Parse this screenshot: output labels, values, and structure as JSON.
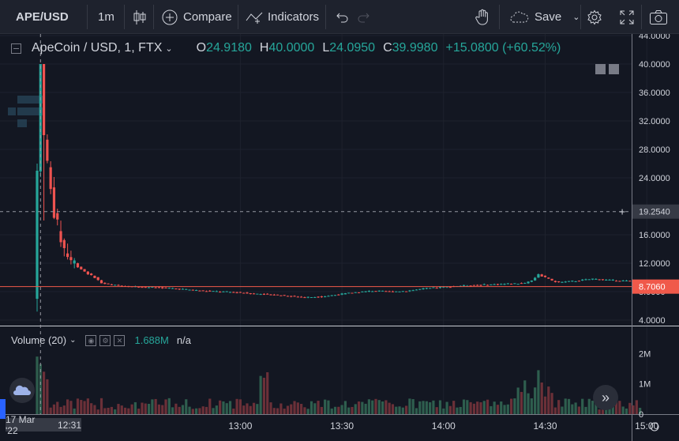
{
  "toolbar": {
    "symbol": "APE/USD",
    "interval": "1m",
    "compare_label": "Compare",
    "indicators_label": "Indicators",
    "save_label": "Save"
  },
  "legend": {
    "name": "ApeCoin / USD, 1, FTX",
    "o_label": "O",
    "o_value": "24.9180",
    "h_label": "H",
    "h_value": "40.0000",
    "l_label": "L",
    "l_value": "24.0950",
    "c_label": "C",
    "c_value": "39.9980",
    "change": "+15.0800 (+60.52%)"
  },
  "volume_legend": {
    "label": "Volume (20)",
    "value": "1.688M",
    "ma": "n/a"
  },
  "crosshair": {
    "date_label": "17 Mar '22",
    "time_label": "12:31",
    "price_label": "19.2540"
  },
  "colors": {
    "up": "#26a69a",
    "down": "#ef5350",
    "up_vol": "#2e5e4e",
    "down_vol": "#6b3038",
    "last": "#f0594a"
  },
  "chart_data": {
    "type": "candlestick",
    "y_ticks": [
      "44.0000",
      "40.0000",
      "36.0000",
      "32.0000",
      "28.0000",
      "24.0000",
      "16.0000",
      "12.0000",
      "8.0000",
      "4.0000"
    ],
    "y_tick_values": [
      44,
      40,
      36,
      32,
      28,
      24,
      16,
      12,
      8,
      4
    ],
    "ylim": [
      0,
      44
    ],
    "last_price": "8.7060",
    "last_price_value": 8.706,
    "x_ticks": [
      "13:00",
      "13:30",
      "14:00",
      "14:30",
      "15:00"
    ],
    "x_tick_minutes": [
      60,
      90,
      120,
      150,
      180
    ],
    "volume_ticks": [
      "2M",
      "1M",
      "0"
    ],
    "volume_tick_values": [
      2000000,
      1000000,
      0
    ],
    "volume_max": 2400000,
    "candles_anchor_price": [
      [
        0,
        7
      ],
      [
        1,
        25
      ],
      [
        2,
        40
      ],
      [
        3,
        30
      ],
      [
        4,
        26
      ],
      [
        5,
        22
      ],
      [
        7,
        17
      ],
      [
        9,
        14
      ],
      [
        11,
        12.5
      ],
      [
        13,
        11.5
      ],
      [
        16,
        10.5
      ],
      [
        18,
        10
      ],
      [
        20,
        9.2
      ],
      [
        22,
        9
      ],
      [
        26,
        8.8
      ],
      [
        30,
        8.7
      ],
      [
        35,
        8.6
      ],
      [
        40,
        8.5
      ],
      [
        45,
        8.3
      ],
      [
        50,
        8.1
      ],
      [
        55,
        8.0
      ],
      [
        60,
        7.9
      ],
      [
        65,
        7.7
      ],
      [
        70,
        7.6
      ],
      [
        75,
        7.4
      ],
      [
        80,
        7.2
      ],
      [
        85,
        7.3
      ],
      [
        90,
        7.6
      ],
      [
        95,
        7.9
      ],
      [
        100,
        8.1
      ],
      [
        105,
        8.0
      ],
      [
        110,
        8.1
      ],
      [
        115,
        8.4
      ],
      [
        120,
        8.6
      ],
      [
        125,
        8.8
      ],
      [
        130,
        8.9
      ],
      [
        135,
        9.0
      ],
      [
        140,
        9.1
      ],
      [
        145,
        9.2
      ],
      [
        147,
        9.6
      ],
      [
        149,
        10.4
      ],
      [
        151,
        10.0
      ],
      [
        153,
        9.5
      ],
      [
        155,
        9.3
      ],
      [
        160,
        9.5
      ],
      [
        165,
        9.8
      ],
      [
        170,
        9.6
      ],
      [
        175,
        9.5
      ],
      [
        180,
        9.4
      ],
      [
        185,
        9.2
      ],
      [
        190,
        9.1
      ],
      [
        195,
        9.0
      ],
      [
        200,
        8.9
      ]
    ]
  }
}
